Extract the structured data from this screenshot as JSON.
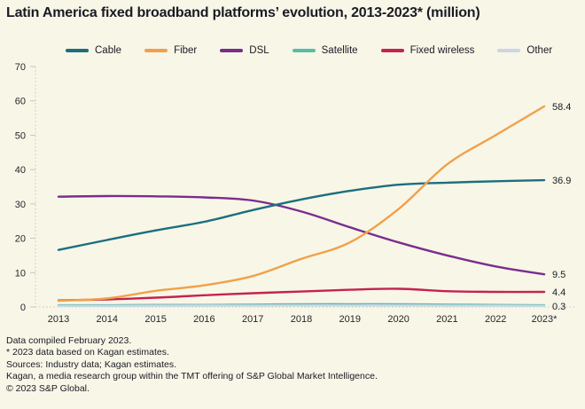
{
  "title": "Latin America fixed broadband platforms’ evolution, 2013-2023* (million)",
  "chart_data": {
    "type": "line",
    "title": "Latin America fixed broadband platforms’ evolution, 2013-2023* (million)",
    "categories": [
      "2013",
      "2014",
      "2015",
      "2016",
      "2017",
      "2018",
      "2019",
      "2020",
      "2021",
      "2022",
      "2023*"
    ],
    "series": [
      {
        "name": "Cable",
        "color": "#1b6f7e",
        "values": [
          16.6,
          19.5,
          22.3,
          24.8,
          28.2,
          31.3,
          33.8,
          35.6,
          36.2,
          36.6,
          36.9
        ],
        "end_label": "36.9"
      },
      {
        "name": "Fiber",
        "color": "#efa14b",
        "values": [
          1.8,
          2.5,
          4.7,
          6.3,
          9.0,
          14.0,
          18.8,
          28.5,
          41.5,
          50.0,
          58.4
        ],
        "end_label": "58.4"
      },
      {
        "name": "DSL",
        "color": "#7a2d8d",
        "values": [
          32.1,
          32.3,
          32.2,
          31.9,
          31.0,
          27.8,
          23.2,
          18.8,
          15.0,
          11.8,
          9.5
        ],
        "end_label": "9.5"
      },
      {
        "name": "Satellite",
        "color": "#57bfa5",
        "values": [
          0.5,
          0.5,
          0.6,
          0.6,
          0.7,
          0.8,
          0.8,
          0.8,
          0.7,
          0.6,
          0.5
        ],
        "end_label": null
      },
      {
        "name": "Fixed wireless",
        "color": "#c42350",
        "values": [
          1.9,
          2.2,
          2.7,
          3.4,
          4.0,
          4.5,
          5.0,
          5.3,
          4.6,
          4.4,
          4.4
        ],
        "end_label": "4.4"
      },
      {
        "name": "Other",
        "color": "#ccd5e8",
        "values": [
          0.3,
          0.3,
          0.35,
          0.4,
          0.4,
          0.45,
          0.45,
          0.45,
          0.4,
          0.35,
          0.3
        ],
        "end_label": "0.3"
      }
    ],
    "draw_order": [
      3,
      5,
      2,
      0,
      4,
      1
    ],
    "y_ticks": [
      0,
      10,
      20,
      30,
      40,
      50,
      60,
      70
    ],
    "ylim": [
      0,
      70
    ],
    "grid": false,
    "legend_position": "top",
    "axis_color": "#c8c7b6",
    "text_color": "#26262b"
  },
  "footnotes": [
    "Data compiled February 2023.",
    "* 2023 data based on Kagan estimates.",
    "Sources: Industry data; Kagan estimates.",
    "Kagan, a media research group within the TMT offering of S&P Global Market Intelligence.",
    "© 2023 S&P Global."
  ]
}
